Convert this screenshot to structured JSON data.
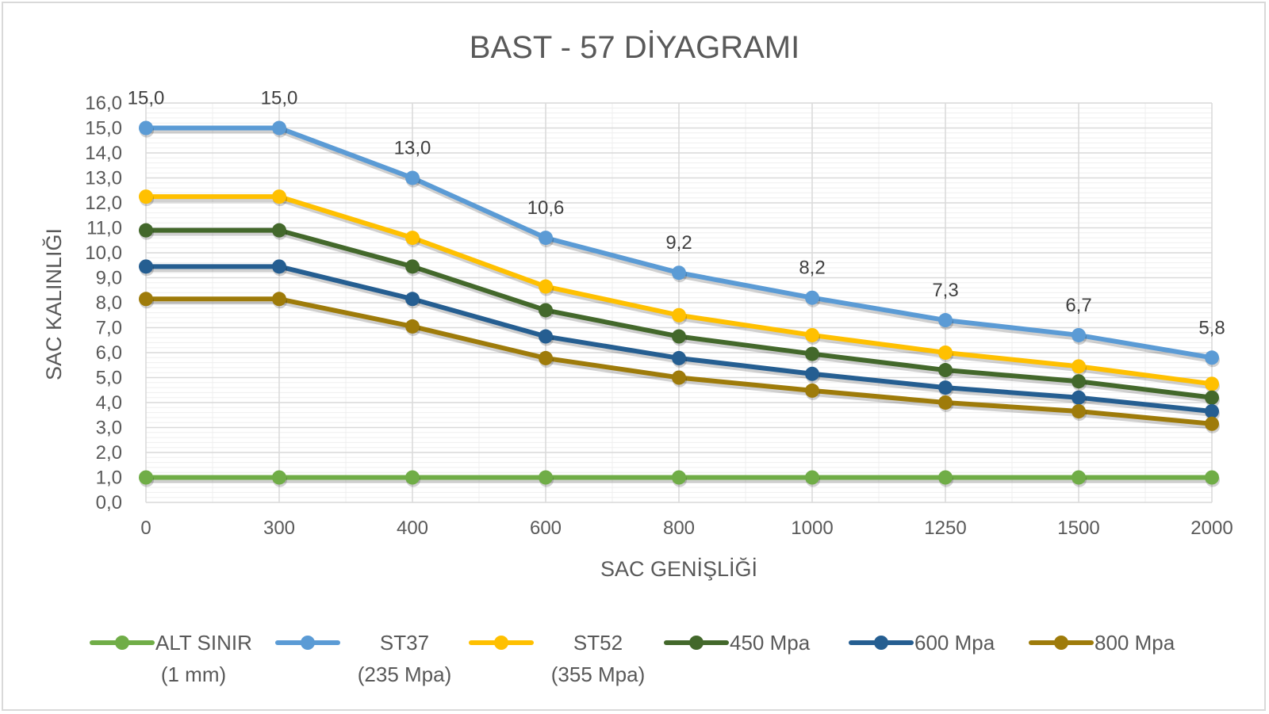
{
  "chart_data": {
    "type": "line",
    "title": "BAST - 57 DİYAGRAMI",
    "xlabel": "SAC GENİŞLİĞİ",
    "ylabel": "SAC KALINLIĞI",
    "categories": [
      "0",
      "300",
      "400",
      "600",
      "800",
      "1000",
      "1250",
      "1500",
      "2000"
    ],
    "ylim": [
      0,
      16
    ],
    "ytick_step": 1,
    "ytick_labels": [
      "0,0",
      "1,0",
      "2,0",
      "3,0",
      "4,0",
      "5,0",
      "6,0",
      "7,0",
      "8,0",
      "9,0",
      "10,0",
      "11,0",
      "12,0",
      "13,0",
      "14,0",
      "15,0",
      "16,0"
    ],
    "grid": true,
    "minor_grid": true,
    "legend_position": "bottom",
    "series": [
      {
        "name_line1": "ALT SINIR",
        "name_line2": "(1 mm)",
        "color": "#70ad47",
        "values": [
          1.0,
          1.0,
          1.0,
          1.0,
          1.0,
          1.0,
          1.0,
          1.0,
          1.0
        ]
      },
      {
        "name_line1": "ST37",
        "name_line2": "(235 Mpa)",
        "color": "#5b9bd5",
        "values": [
          15.0,
          15.0,
          13.0,
          10.6,
          9.2,
          8.2,
          7.3,
          6.7,
          5.8
        ],
        "data_labels": [
          "15,0",
          "15,0",
          "13,0",
          "10,6",
          "9,2",
          "8,2",
          "7,3",
          "6,7",
          "5,8"
        ]
      },
      {
        "name_line1": "ST52",
        "name_line2": "(355 Mpa)",
        "color": "#ffc000",
        "values": [
          12.25,
          12.25,
          10.6,
          8.65,
          7.5,
          6.7,
          6.0,
          5.45,
          4.75
        ]
      },
      {
        "name_line1": "450  Mpa",
        "name_line2": "",
        "color": "#43682b",
        "values": [
          10.9,
          10.9,
          9.45,
          7.7,
          6.65,
          5.95,
          5.3,
          4.85,
          4.2
        ]
      },
      {
        "name_line1": "600 Mpa",
        "name_line2": "",
        "color": "#255e91",
        "values": [
          9.45,
          9.45,
          8.15,
          6.65,
          5.78,
          5.15,
          4.6,
          4.2,
          3.65
        ]
      },
      {
        "name_line1": "800 Mpa",
        "name_line2": "",
        "color": "#9e7b0a",
        "values": [
          8.15,
          8.15,
          7.05,
          5.78,
          5.0,
          4.48,
          4.0,
          3.65,
          3.15
        ]
      }
    ]
  }
}
